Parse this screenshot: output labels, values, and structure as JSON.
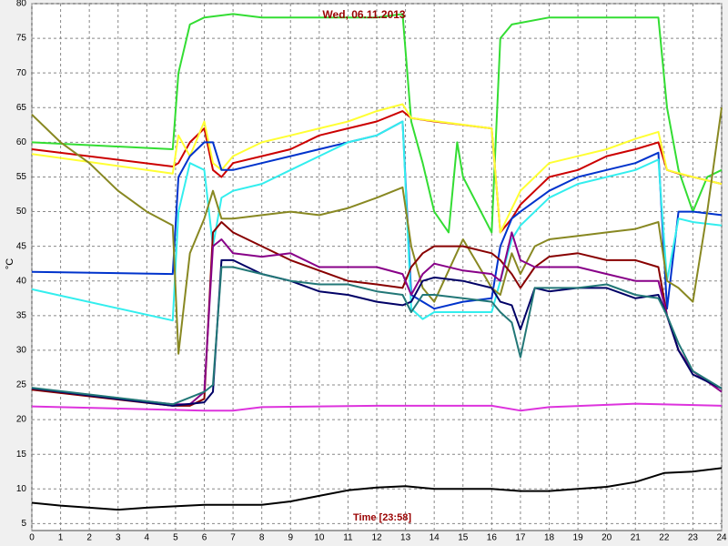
{
  "chart_data": {
    "type": "line",
    "title": "Wed, 06.11.2013",
    "xlabel": "Time [23:58]",
    "ylabel": "°C",
    "xlim": [
      0,
      24
    ],
    "xticks": [
      0,
      1,
      2,
      3,
      4,
      5,
      6,
      7,
      8,
      9,
      10,
      11,
      12,
      13,
      14,
      15,
      16,
      17,
      18,
      19,
      20,
      21,
      22,
      23,
      24
    ],
    "ylim": [
      4,
      80
    ],
    "yticks": [
      5,
      10,
      15,
      20,
      25,
      30,
      35,
      40,
      45,
      50,
      55,
      60,
      65,
      70,
      75,
      80
    ],
    "grid": true,
    "series": [
      {
        "color": "#33dd33",
        "x": [
          0,
          4.9,
          5.1,
          5.5,
          6,
          7,
          8,
          10,
          12,
          12.9,
          13.2,
          13.6,
          14,
          14.5,
          14.8,
          15,
          16,
          16.3,
          16.7,
          18,
          20,
          21.8,
          22.1,
          22.5,
          23,
          23.5,
          24
        ],
        "values": [
          60,
          59,
          70,
          77,
          78,
          78.5,
          78,
          78,
          78,
          78.5,
          63,
          57,
          50,
          47,
          60,
          55,
          47,
          75,
          77,
          78,
          78,
          78,
          65,
          56,
          50,
          55,
          56
        ]
      },
      {
        "color": "#cc0000",
        "x": [
          0,
          4.9,
          5.1,
          5.5,
          6,
          6.3,
          6.6,
          7,
          8,
          9,
          10,
          11,
          12,
          12.9,
          13.2,
          14,
          15,
          16,
          16.3,
          16.7,
          17,
          17.5,
          18,
          19,
          20,
          21,
          21.8,
          22.1,
          22.5,
          23,
          23.5,
          24
        ],
        "values": [
          59,
          56.5,
          57,
          60,
          62,
          56,
          55,
          57,
          58,
          59,
          61,
          62,
          63,
          64.5,
          63.5,
          63,
          62.5,
          62,
          47,
          49,
          51,
          53,
          55,
          56,
          58,
          59,
          60,
          56,
          55.5,
          55,
          54.5,
          54
        ]
      },
      {
        "color": "#ffff33",
        "x": [
          0,
          4.9,
          5.1,
          5.5,
          6,
          6.3,
          6.6,
          7,
          8,
          9,
          10,
          11,
          12,
          12.9,
          13.2,
          16,
          16.3,
          17,
          17.5,
          18,
          20,
          21,
          21.8,
          22.1,
          23,
          24
        ],
        "values": [
          58.3,
          55.5,
          61,
          58,
          63,
          57,
          56,
          58,
          60,
          61,
          62,
          63,
          64.5,
          65.5,
          63.5,
          62,
          47,
          53,
          55,
          57,
          59,
          60.5,
          61.5,
          56,
          55,
          54
        ]
      },
      {
        "color": "#0033cc",
        "x": [
          0,
          4.9,
          5.1,
          5.5,
          6,
          6.3,
          6.6,
          7,
          8,
          9,
          10,
          11,
          12,
          12.9,
          13.2,
          13.6,
          14,
          15,
          16,
          16.3,
          16.7,
          17,
          18,
          19,
          20,
          21,
          21.8,
          22.1,
          22.5,
          23,
          24
        ],
        "values": [
          41.3,
          41,
          55,
          58,
          60,
          60,
          56,
          56,
          57,
          58,
          59,
          60,
          61,
          63,
          38,
          37,
          36,
          37,
          37.5,
          45,
          49,
          50,
          53,
          55,
          56,
          57,
          58.5,
          36,
          50,
          50,
          49.5
        ]
      },
      {
        "color": "#33eeee",
        "x": [
          0,
          4.9,
          5.1,
          5.5,
          6,
          6.3,
          6.6,
          7,
          8,
          9,
          10,
          11,
          12,
          12.9,
          13.2,
          13.6,
          14,
          15,
          16,
          16.3,
          16.7,
          17,
          18,
          19,
          20,
          21,
          21.8,
          22.1,
          22.5,
          23,
          24
        ],
        "values": [
          38.8,
          34.3,
          50,
          57,
          56,
          45,
          52,
          53,
          54,
          56,
          58,
          60,
          61,
          63,
          36,
          34.5,
          35.5,
          35.5,
          35.5,
          40,
          46,
          48,
          52,
          54,
          55,
          56,
          57.5,
          40,
          49,
          48.5,
          48
        ]
      },
      {
        "color": "#888822",
        "x": [
          0,
          1,
          2,
          3,
          4,
          4.9,
          5.1,
          5.5,
          6,
          6.3,
          6.6,
          7,
          8,
          9,
          10,
          11,
          12,
          12.9,
          13.2,
          13.6,
          14,
          15,
          16,
          16.3,
          16.7,
          17,
          17.5,
          18,
          19,
          20,
          21,
          21.8,
          22.1,
          22.5,
          23,
          23.5,
          24
        ],
        "values": [
          64,
          60,
          57,
          53,
          50,
          48,
          29.5,
          44,
          49,
          53,
          49,
          49,
          49.5,
          50,
          49.5,
          50.5,
          52,
          53.5,
          45,
          39,
          37,
          46,
          39,
          38,
          44,
          41,
          45,
          46,
          46.5,
          47,
          47.5,
          48.5,
          40,
          39,
          37,
          50,
          65
        ]
      },
      {
        "color": "#880000",
        "x": [
          0,
          4.9,
          5.5,
          6,
          6.3,
          6.6,
          7,
          8,
          9,
          10,
          11,
          12,
          12.9,
          13.2,
          13.6,
          14,
          15,
          16,
          16.3,
          16.7,
          17,
          17.5,
          18,
          19,
          20,
          21,
          21.8,
          22.1,
          22.5,
          23,
          23.5,
          24
        ],
        "values": [
          24.3,
          22,
          22,
          23,
          47,
          48.5,
          47,
          45,
          43,
          41.5,
          40,
          39.5,
          39,
          42,
          44,
          45,
          45,
          44,
          43,
          41,
          39,
          42,
          43.5,
          44,
          43,
          43,
          42,
          35,
          30,
          27,
          25.5,
          24.5
        ]
      },
      {
        "color": "#880088",
        "x": [
          0,
          4.9,
          5.5,
          6,
          6.3,
          6.6,
          7,
          8,
          9,
          10,
          11,
          12,
          12.9,
          13.2,
          13.6,
          14,
          15,
          16,
          16.3,
          16.7,
          17,
          17.5,
          18,
          19,
          20,
          21,
          21.8,
          22.1,
          22.5,
          23,
          24
        ],
        "values": [
          24.5,
          22.2,
          22.2,
          24,
          45,
          46,
          44,
          43.5,
          44,
          42,
          42,
          42,
          41,
          38,
          41,
          42.5,
          41.5,
          41,
          40,
          47,
          43,
          42,
          42,
          42,
          41,
          40,
          40,
          35,
          30,
          27,
          24
        ]
      },
      {
        "color": "#000066",
        "x": [
          0,
          4.9,
          6,
          6.3,
          6.6,
          7,
          8,
          9,
          10,
          11,
          12,
          12.9,
          13.2,
          13.6,
          14,
          15,
          16,
          16.3,
          16.7,
          17,
          17.5,
          18,
          19,
          20,
          21,
          21.8,
          22.1,
          22.5,
          23,
          24
        ],
        "values": [
          24.5,
          22,
          22.5,
          24,
          43,
          43,
          41,
          40,
          38.5,
          38,
          37,
          36.5,
          37,
          40,
          40.5,
          40,
          39,
          37,
          36.5,
          33,
          39,
          38.5,
          39,
          39,
          37.5,
          38,
          35,
          30,
          26.5,
          24.5
        ]
      },
      {
        "color": "#227777",
        "x": [
          0,
          4.9,
          6,
          6.3,
          6.6,
          7,
          8,
          9,
          10,
          11,
          12,
          12.9,
          13.2,
          13.6,
          14,
          15,
          16,
          16.3,
          16.7,
          17,
          17.5,
          18,
          19,
          20,
          21,
          21.8,
          22.1,
          22.5,
          23,
          24
        ],
        "values": [
          24.6,
          22.2,
          24,
          25,
          42,
          42,
          41,
          40,
          39.5,
          39.5,
          38.5,
          38,
          35.5,
          38,
          38,
          37.5,
          37,
          35.5,
          34,
          29,
          39,
          39,
          39,
          39.5,
          38,
          37.5,
          35,
          31,
          27,
          24.5
        ]
      },
      {
        "color": "#dd33dd",
        "x": [
          0,
          6,
          7,
          8,
          12,
          16,
          17,
          18,
          21,
          24
        ],
        "values": [
          21.9,
          21.3,
          21.3,
          21.8,
          22,
          22,
          21.3,
          21.8,
          22.3,
          22
        ]
      },
      {
        "color": "#000000",
        "x": [
          0,
          1,
          2,
          3,
          4,
          6,
          8,
          9,
          10,
          11,
          12,
          13,
          14,
          15,
          16,
          17,
          18,
          19,
          20,
          21,
          22,
          23,
          24
        ],
        "values": [
          8,
          7.6,
          7.3,
          7,
          7.3,
          7.7,
          7.7,
          8.2,
          9,
          9.8,
          10.2,
          10.4,
          10,
          10,
          10,
          9.7,
          9.7,
          10,
          10.3,
          11,
          12.3,
          12.5,
          13
        ]
      }
    ]
  }
}
